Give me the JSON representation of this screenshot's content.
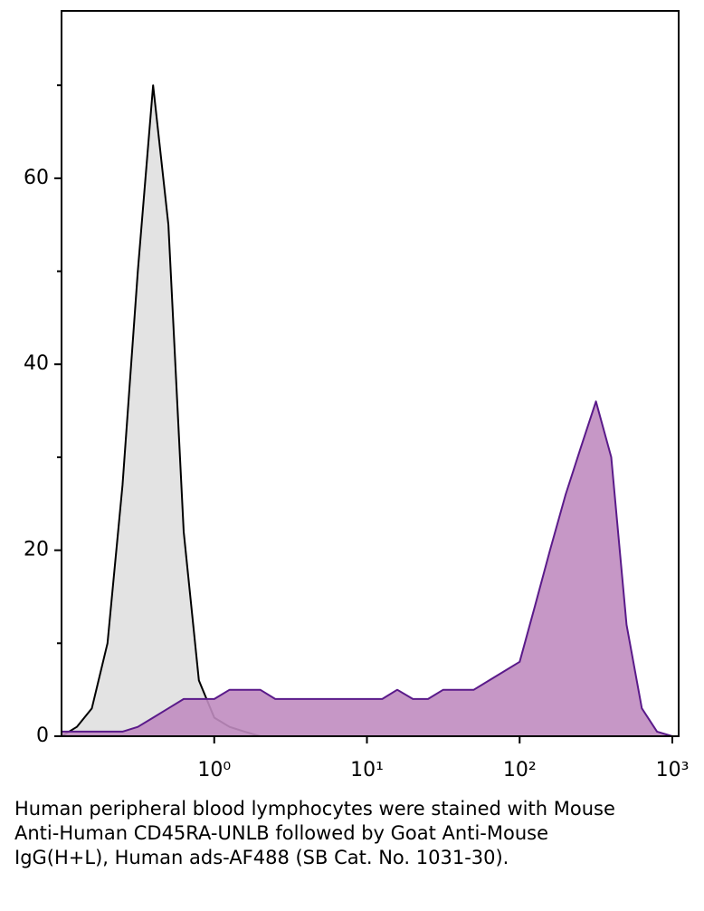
{
  "chart_data": {
    "type": "histogram-overlay",
    "xscale": "log",
    "xlim": [
      0.1,
      1100
    ],
    "ylim": [
      0,
      78
    ],
    "xticks": [
      {
        "value": 1,
        "label": "10⁰"
      },
      {
        "value": 10,
        "label": "10¹"
      },
      {
        "value": 100,
        "label": "10²"
      },
      {
        "value": 1000,
        "label": "10³"
      }
    ],
    "yticks": [
      0,
      20,
      40,
      60
    ],
    "yminorticks": [
      10,
      30,
      50,
      70
    ],
    "x": [
      0.1,
      0.126,
      0.158,
      0.2,
      0.251,
      0.316,
      0.398,
      0.501,
      0.631,
      0.794,
      1,
      1.26,
      1.58,
      2,
      2.51,
      3.16,
      3.98,
      5.01,
      6.31,
      7.94,
      10,
      12.6,
      15.8,
      20,
      25.1,
      31.6,
      39.8,
      50.1,
      63.1,
      79.4,
      100,
      126,
      158,
      200,
      251,
      316,
      398,
      501,
      631,
      794,
      1000
    ],
    "series": [
      {
        "color": "#000000",
        "fill": "#e0e0e0",
        "values": [
          0,
          1,
          3,
          10,
          27,
          50,
          70,
          55,
          22,
          6,
          2,
          1,
          0.5,
          0,
          0,
          0,
          0,
          0,
          0,
          0,
          0,
          0,
          0,
          0,
          0,
          0,
          0,
          0,
          0,
          0,
          0,
          0,
          0,
          0,
          0,
          0,
          0,
          0,
          0,
          0,
          0
        ]
      },
      {
        "color": "#5a1a8a",
        "fill": "#c08cc0",
        "values": [
          0.5,
          0.5,
          0.5,
          0.5,
          0.5,
          1,
          2,
          3,
          4,
          4,
          4,
          5,
          5,
          5,
          4,
          4,
          4,
          4,
          4,
          4,
          4,
          4,
          5,
          4,
          4,
          5,
          5,
          5,
          6,
          7,
          8,
          14,
          20,
          26,
          31,
          36,
          30,
          12,
          3,
          0.5,
          0
        ]
      }
    ],
    "caption": "Human peripheral blood lymphocytes were stained with Mouse Anti-Human CD45RA-UNLB followed by Goat Anti-Mouse IgG(H+L), Human ads-AF488 (SB Cat. No. 1031-30)."
  }
}
